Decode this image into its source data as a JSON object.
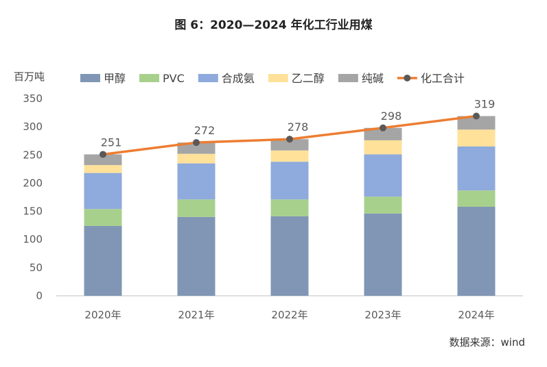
{
  "figure_title": "图 6：2020—2024 年化工行业用煤",
  "unit": "百万吨",
  "source": "数据来源：wind",
  "chart_data": {
    "type": "bar",
    "stacked": true,
    "categories": [
      "2020年",
      "2021年",
      "2022年",
      "2023年",
      "2024年"
    ],
    "ylim": [
      0,
      350
    ],
    "yticks": [
      0,
      50,
      100,
      150,
      200,
      250,
      300,
      350
    ],
    "ylabel": "百万吨",
    "grid": false,
    "legend_position": "top",
    "series": [
      {
        "name": "甲醇",
        "color": "#8096b4",
        "values": [
          124,
          140,
          141,
          146,
          158
        ]
      },
      {
        "name": "PVC",
        "color": "#a8d08d",
        "values": [
          30,
          31,
          30,
          30,
          29
        ]
      },
      {
        "name": "合成氨",
        "color": "#8faadc",
        "values": [
          64,
          64,
          67,
          75,
          78
        ]
      },
      {
        "name": "乙二醇",
        "color": "#ffe19a",
        "values": [
          14,
          17,
          20,
          25,
          30
        ]
      },
      {
        "name": "纯碱",
        "color": "#a5a5a5",
        "values": [
          19,
          20,
          20,
          22,
          24
        ]
      }
    ],
    "line": {
      "name": "化工合计",
      "color": "#ed7d31",
      "marker_color": "#595959",
      "values": [
        251,
        272,
        278,
        298,
        319
      ]
    }
  }
}
